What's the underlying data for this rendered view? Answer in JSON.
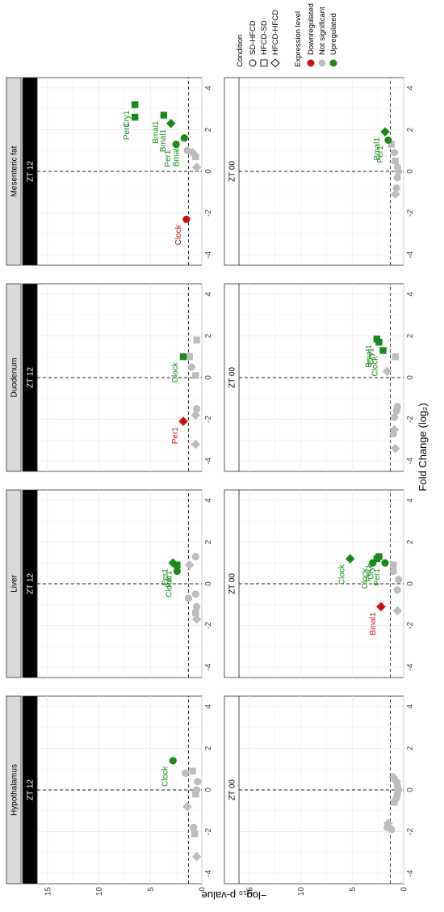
{
  "chart_data": {
    "type": "scatter",
    "title": "",
    "xlabel": "Fold Change (log₂)",
    "ylabel": "−log₁₀ p-value",
    "xlim": [
      -4.5,
      4.5
    ],
    "ylim": [
      0,
      16
    ],
    "x_ticks": [
      "-4",
      "-2",
      "0",
      "2",
      "4"
    ],
    "y_ticks": [
      "0",
      "5",
      "10",
      "15"
    ],
    "vline_x": 0,
    "hline_y": 1.3,
    "tissues": [
      "Hypothalamus",
      "Liver",
      "Duodenum",
      "Mesenteric fat"
    ],
    "timepoints": [
      "ZT 00",
      "ZT 12"
    ],
    "legend": {
      "condition_title": "Condition",
      "conditions": [
        {
          "label": "SD-HFCD",
          "shape": "circle"
        },
        {
          "label": "HFCD-SD",
          "shape": "square"
        },
        {
          "label": "HFCD-HFCD",
          "shape": "diamond"
        }
      ],
      "expression_title": "Expression level",
      "levels": [
        {
          "label": "Downregulated",
          "color": "#cc1111"
        },
        {
          "label": "Not significant",
          "color": "#bdbdbd"
        },
        {
          "label": "Upregulated",
          "color": "#1a8a1a"
        }
      ]
    },
    "colors": {
      "down": "#cc1111",
      "ns": "#bdbdbd",
      "up": "#1a8a1a",
      "strip_light": "#d9d9d9",
      "strip_dark": "#000000"
    },
    "panels": [
      {
        "tissue": "Hypothalamus",
        "timepoint": "ZT 00",
        "points": [
          {
            "x": -1.9,
            "y": 1.2,
            "shape": "circle",
            "level": "ns"
          },
          {
            "x": -1.6,
            "y": 1.5,
            "shape": "diamond",
            "level": "ns"
          },
          {
            "x": -1.8,
            "y": 1.6,
            "shape": "circle",
            "level": "ns"
          },
          {
            "x": -0.6,
            "y": 0.9,
            "shape": "square",
            "level": "ns"
          },
          {
            "x": -0.4,
            "y": 0.7,
            "shape": "circle",
            "level": "ns"
          },
          {
            "x": -0.2,
            "y": 0.6,
            "shape": "circle",
            "level": "ns"
          },
          {
            "x": 0.0,
            "y": 0.5,
            "shape": "circle",
            "level": "ns"
          },
          {
            "x": 0.2,
            "y": 0.6,
            "shape": "circle",
            "level": "ns"
          },
          {
            "x": 0.4,
            "y": 0.7,
            "shape": "diamond",
            "level": "ns"
          },
          {
            "x": 0.6,
            "y": 1.0,
            "shape": "diamond",
            "level": "ns"
          }
        ]
      },
      {
        "tissue": "Liver",
        "timepoint": "ZT 00",
        "points": [
          {
            "x": -1.1,
            "y": 2.2,
            "shape": "diamond",
            "level": "down",
            "label": "Bmal1"
          },
          {
            "x": -1.3,
            "y": 0.6,
            "shape": "diamond",
            "level": "ns"
          },
          {
            "x": -0.3,
            "y": 0.6,
            "shape": "circle",
            "level": "ns"
          },
          {
            "x": 0.2,
            "y": 0.5,
            "shape": "circle",
            "level": "ns"
          },
          {
            "x": 0.6,
            "y": 1.0,
            "shape": "circle",
            "level": "ns"
          },
          {
            "x": 0.9,
            "y": 1.0,
            "shape": "square",
            "level": "ns"
          },
          {
            "x": 1.0,
            "y": 1.8,
            "shape": "circle",
            "level": "up",
            "label": "Per1"
          },
          {
            "x": 1.0,
            "y": 3.0,
            "shape": "circle",
            "level": "up",
            "label": "Clock"
          },
          {
            "x": 1.2,
            "y": 2.6,
            "shape": "square",
            "level": "up",
            "label": "Per1"
          },
          {
            "x": 1.3,
            "y": 2.4,
            "shape": "square",
            "level": "up",
            "label": "Cry1"
          },
          {
            "x": 1.2,
            "y": 5.2,
            "shape": "diamond",
            "level": "up",
            "label": "Clock"
          }
        ]
      },
      {
        "tissue": "Duodenum",
        "timepoint": "ZT 00",
        "points": [
          {
            "x": -3.4,
            "y": 0.8,
            "shape": "diamond",
            "level": "ns"
          },
          {
            "x": -2.7,
            "y": 1.0,
            "shape": "circle",
            "level": "ns"
          },
          {
            "x": -2.5,
            "y": 0.9,
            "shape": "diamond",
            "level": "ns"
          },
          {
            "x": -1.9,
            "y": 0.9,
            "shape": "circle",
            "level": "ns"
          },
          {
            "x": -1.6,
            "y": 0.7,
            "shape": "circle",
            "level": "ns"
          },
          {
            "x": -1.4,
            "y": 0.6,
            "shape": "circle",
            "level": "ns"
          },
          {
            "x": 0.3,
            "y": 1.6,
            "shape": "diamond",
            "level": "ns"
          },
          {
            "x": 1.0,
            "y": 0.8,
            "shape": "square",
            "level": "ns"
          },
          {
            "x": 1.3,
            "y": 2.0,
            "shape": "square",
            "level": "up",
            "label": "Clock"
          },
          {
            "x": 1.7,
            "y": 2.4,
            "shape": "square",
            "level": "up",
            "label": "Cry1"
          },
          {
            "x": 1.85,
            "y": 2.6,
            "shape": "square",
            "level": "up",
            "label": "Bmal1"
          }
        ]
      },
      {
        "tissue": "Mesenteric fat",
        "timepoint": "ZT 00",
        "points": [
          {
            "x": -1.1,
            "y": 0.8,
            "shape": "diamond",
            "level": "ns"
          },
          {
            "x": -0.8,
            "y": 0.7,
            "shape": "circle",
            "level": "ns"
          },
          {
            "x": -0.3,
            "y": 0.6,
            "shape": "circle",
            "level": "ns"
          },
          {
            "x": 0.0,
            "y": 0.5,
            "shape": "circle",
            "level": "ns"
          },
          {
            "x": 0.2,
            "y": 0.6,
            "shape": "circle",
            "level": "ns"
          },
          {
            "x": 0.5,
            "y": 0.8,
            "shape": "square",
            "level": "ns"
          },
          {
            "x": 0.9,
            "y": 0.9,
            "shape": "circle",
            "level": "ns"
          },
          {
            "x": 1.3,
            "y": 1.2,
            "shape": "square",
            "level": "ns"
          },
          {
            "x": 1.5,
            "y": 1.5,
            "shape": "circle",
            "level": "up",
            "label": "Per1"
          },
          {
            "x": 1.9,
            "y": 1.8,
            "shape": "diamond",
            "level": "up",
            "label": "Bmal1"
          }
        ]
      },
      {
        "tissue": "Hypothalamus",
        "timepoint": "ZT 12",
        "points": [
          {
            "x": -3.2,
            "y": 0.5,
            "shape": "diamond",
            "level": "ns"
          },
          {
            "x": -2.1,
            "y": 0.7,
            "shape": "square",
            "level": "ns"
          },
          {
            "x": -1.8,
            "y": 0.8,
            "shape": "circle",
            "level": "ns"
          },
          {
            "x": -0.8,
            "y": 1.4,
            "shape": "diamond",
            "level": "ns"
          },
          {
            "x": -0.2,
            "y": 0.6,
            "shape": "square",
            "level": "ns"
          },
          {
            "x": 0.0,
            "y": 0.5,
            "shape": "circle",
            "level": "ns"
          },
          {
            "x": 0.4,
            "y": 0.4,
            "shape": "circle",
            "level": "ns"
          },
          {
            "x": 0.8,
            "y": 1.6,
            "shape": "circle",
            "level": "ns"
          },
          {
            "x": 0.9,
            "y": 0.9,
            "shape": "square",
            "level": "ns"
          },
          {
            "x": 1.4,
            "y": 2.8,
            "shape": "circle",
            "level": "up",
            "label": "Clock"
          }
        ]
      },
      {
        "tissue": "Liver",
        "timepoint": "ZT 12",
        "points": [
          {
            "x": -1.7,
            "y": 0.5,
            "shape": "diamond",
            "level": "ns"
          },
          {
            "x": -1.4,
            "y": 0.6,
            "shape": "square",
            "level": "ns"
          },
          {
            "x": -1.1,
            "y": 0.5,
            "shape": "circle",
            "level": "ns"
          },
          {
            "x": -0.7,
            "y": 1.3,
            "shape": "circle",
            "level": "ns"
          },
          {
            "x": -0.5,
            "y": 0.6,
            "shape": "circle",
            "level": "ns"
          },
          {
            "x": 0.6,
            "y": 2.4,
            "shape": "circle",
            "level": "up",
            "label": "Clock"
          },
          {
            "x": 0.9,
            "y": 1.2,
            "shape": "diamond",
            "level": "ns"
          },
          {
            "x": 0.9,
            "y": 2.4,
            "shape": "square",
            "level": "up",
            "label": "Per1"
          },
          {
            "x": 1.0,
            "y": 2.8,
            "shape": "diamond",
            "level": "up",
            "label": "Per1"
          },
          {
            "x": 1.3,
            "y": 0.6,
            "shape": "circle",
            "level": "ns"
          }
        ]
      },
      {
        "tissue": "Duodenum",
        "timepoint": "ZT 12",
        "points": [
          {
            "x": -3.2,
            "y": 0.6,
            "shape": "diamond",
            "level": "ns"
          },
          {
            "x": -2.1,
            "y": 1.8,
            "shape": "diamond",
            "level": "down",
            "label": "Per1"
          },
          {
            "x": -1.8,
            "y": 0.6,
            "shape": "diamond",
            "level": "ns"
          },
          {
            "x": -1.5,
            "y": 0.5,
            "shape": "circle",
            "level": "ns"
          },
          {
            "x": 0.1,
            "y": 0.6,
            "shape": "square",
            "level": "ns"
          },
          {
            "x": 0.5,
            "y": 1.0,
            "shape": "circle",
            "level": "ns"
          },
          {
            "x": 1.0,
            "y": 1.2,
            "shape": "square",
            "level": "ns"
          },
          {
            "x": 1.0,
            "y": 1.8,
            "shape": "square",
            "level": "up",
            "label": "Clock"
          },
          {
            "x": 1.8,
            "y": 0.5,
            "shape": "square",
            "level": "ns"
          }
        ]
      },
      {
        "tissue": "Mesenteric fat",
        "timepoint": "ZT 12",
        "points": [
          {
            "x": -2.3,
            "y": 1.5,
            "shape": "circle",
            "level": "down",
            "label": "Clock"
          },
          {
            "x": 0.2,
            "y": 0.5,
            "shape": "diamond",
            "level": "ns"
          },
          {
            "x": 0.7,
            "y": 0.6,
            "shape": "square",
            "level": "ns"
          },
          {
            "x": 0.9,
            "y": 0.9,
            "shape": "diamond",
            "level": "ns"
          },
          {
            "x": 1.0,
            "y": 1.4,
            "shape": "circle",
            "level": "ns"
          },
          {
            "x": 1.3,
            "y": 2.5,
            "shape": "circle",
            "level": "up",
            "label": "Per1"
          },
          {
            "x": 1.6,
            "y": 1.7,
            "shape": "circle",
            "level": "up",
            "label": "Bmal1"
          },
          {
            "x": 2.3,
            "y": 3.0,
            "shape": "diamond",
            "level": "up",
            "label": "Bmal1"
          },
          {
            "x": 2.6,
            "y": 6.5,
            "shape": "square",
            "level": "up",
            "label": "Per1"
          },
          {
            "x": 3.2,
            "y": 6.5,
            "shape": "square",
            "level": "up",
            "label": "Cry1"
          },
          {
            "x": 2.7,
            "y": 3.7,
            "shape": "square",
            "level": "up",
            "label": "Bmal1"
          }
        ]
      }
    ]
  }
}
